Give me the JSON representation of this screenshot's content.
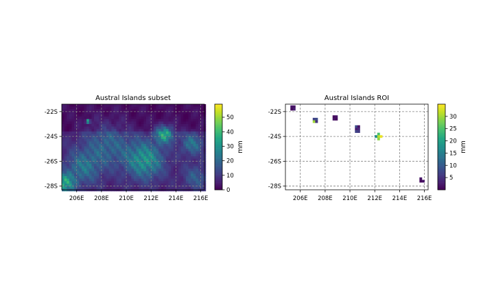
{
  "colormap": "viridis",
  "chart_data": [
    {
      "type": "heatmap",
      "title": "Austral Islands subset",
      "x_ticks": [
        "206E",
        "208E",
        "210E",
        "212E",
        "214E",
        "216E"
      ],
      "y_ticks": [
        "-22S",
        "-24S",
        "-26S",
        "-28S"
      ],
      "xlim": [
        204.8,
        216.3
      ],
      "ylim": [
        -28.3,
        -21.4
      ],
      "grid": true,
      "colorbar": {
        "label": "mm",
        "range": [
          0,
          59
        ],
        "ticks": [
          "0",
          "10",
          "20",
          "30",
          "40",
          "50"
        ]
      },
      "hotspots": [
        {
          "lon": 206.9,
          "lat": -22.8,
          "value": 58,
          "radius": 0.15
        },
        {
          "lon": 213.1,
          "lat": -23.8,
          "value": 36,
          "radius": 0.7
        },
        {
          "lon": 211.5,
          "lat": -25.9,
          "value": 30,
          "radius": 1.5
        },
        {
          "lon": 205.0,
          "lat": -27.8,
          "value": 34,
          "radius": 0.8
        },
        {
          "lon": 208.5,
          "lat": -24.7,
          "value": 16,
          "radius": 1.8
        },
        {
          "lon": 206.5,
          "lat": -26.5,
          "value": 19,
          "radius": 1.4
        },
        {
          "lon": 215.3,
          "lat": -24.6,
          "value": 20,
          "radius": 0.9
        },
        {
          "lon": 215.6,
          "lat": -27.3,
          "value": 14,
          "radius": 1.0
        }
      ]
    },
    {
      "type": "heatmap",
      "title": "Austral Islands ROI",
      "x_ticks": [
        "206E",
        "208E",
        "210E",
        "212E",
        "214E",
        "216E"
      ],
      "y_ticks": [
        "-22S",
        "-24S",
        "-26S",
        "-28S"
      ],
      "xlim": [
        204.8,
        216.3
      ],
      "ylim": [
        -28.3,
        -21.4
      ],
      "grid": true,
      "colorbar": {
        "label": "mm",
        "range": [
          0,
          35
        ],
        "ticks": [
          "5",
          "10",
          "15",
          "20",
          "25",
          "30"
        ]
      },
      "cells": [
        {
          "lon": 205.3,
          "lat": -21.6,
          "value": 2
        },
        {
          "lon": 205.5,
          "lat": -21.6,
          "value": 2
        },
        {
          "lon": 205.3,
          "lat": -21.8,
          "value": 1
        },
        {
          "lon": 205.5,
          "lat": -21.8,
          "value": 3
        },
        {
          "lon": 207.1,
          "lat": -22.6,
          "value": 7
        },
        {
          "lon": 207.3,
          "lat": -22.6,
          "value": 8
        },
        {
          "lon": 207.1,
          "lat": -22.8,
          "value": 30
        },
        {
          "lon": 207.3,
          "lat": -22.8,
          "value": 5
        },
        {
          "lon": 208.7,
          "lat": -22.4,
          "value": 1
        },
        {
          "lon": 208.9,
          "lat": -22.4,
          "value": 2
        },
        {
          "lon": 208.7,
          "lat": -22.6,
          "value": 2
        },
        {
          "lon": 208.9,
          "lat": -22.6,
          "value": 1
        },
        {
          "lon": 210.5,
          "lat": -23.2,
          "value": 8
        },
        {
          "lon": 210.7,
          "lat": -23.2,
          "value": 2
        },
        {
          "lon": 210.5,
          "lat": -23.4,
          "value": 3
        },
        {
          "lon": 210.7,
          "lat": -23.4,
          "value": 4
        },
        {
          "lon": 210.5,
          "lat": -23.6,
          "value": 7
        },
        {
          "lon": 210.7,
          "lat": -23.6,
          "value": 6
        },
        {
          "lon": 212.3,
          "lat": -23.8,
          "value": 25
        },
        {
          "lon": 212.1,
          "lat": -24.0,
          "value": 17
        },
        {
          "lon": 212.3,
          "lat": -24.0,
          "value": 31
        },
        {
          "lon": 212.5,
          "lat": -24.0,
          "value": 34
        },
        {
          "lon": 212.3,
          "lat": -24.2,
          "value": 29
        },
        {
          "lon": 215.7,
          "lat": -27.4,
          "value": 2
        },
        {
          "lon": 215.7,
          "lat": -27.6,
          "value": 1
        },
        {
          "lon": 215.9,
          "lat": -27.6,
          "value": 2
        }
      ]
    }
  ]
}
